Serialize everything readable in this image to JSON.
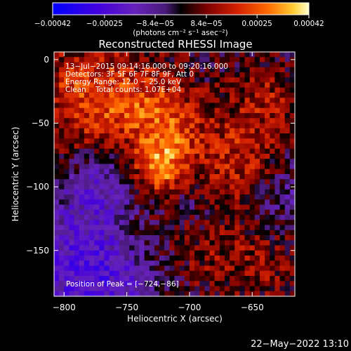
{
  "chart_data": {
    "type": "heatmap",
    "title": "Reconstructed RHESSI Image",
    "xlabel": "Heliocentric X (arcsec)",
    "ylabel": "Heliocentric Y (arcsec)",
    "xlim": [
      -808,
      -616
    ],
    "ylim": [
      -186,
      6
    ],
    "x_ticks": [
      -800,
      -750,
      -700,
      -650
    ],
    "x_tick_labels": [
      "−800",
      "−750",
      "−700",
      "−650"
    ],
    "y_ticks": [
      0,
      -50,
      -100,
      -150
    ],
    "y_tick_labels": [
      "0",
      "−50",
      "−100",
      "−150"
    ],
    "colorbar": {
      "min": -0.00042,
      "max": 0.00042,
      "ticks": [
        -0.00042,
        -0.00025,
        -8.4e-05,
        8.4e-05,
        0.00025,
        0.00042
      ],
      "tick_labels": [
        "−0.00042",
        "−0.00025",
        "−8.4e−05",
        "8.4e−05",
        "0.00025",
        "0.00042"
      ],
      "units_label": "(photons cm⁻² s⁻¹ asec⁻²)",
      "colors": [
        "#0000ff",
        "#4400dd",
        "#6622bb",
        "#4a1a7a",
        "#000000",
        "#7a0000",
        "#d42000",
        "#ff6a00",
        "#ffcc33",
        "#ffffcc"
      ]
    },
    "annotations": [
      "13−Jul−2015 09:14:16.000 to 09:20:16.000",
      "Detectors: 3F 5F 6F 7F 8F 9F, Att 0",
      "Energy Range: 12.0 − 25.0 keV",
      "Clean    Total counts: 1.07E+04"
    ],
    "peak_text": "Position of Peak = [−724,−86]",
    "peak": {
      "x": -724,
      "y": -86
    },
    "grid": 48,
    "map_description": "bright source near (-724,-86), flame arms, bright east ridge, violet negative region lower-left"
  },
  "timestamp": "22−May−2022 13:10"
}
